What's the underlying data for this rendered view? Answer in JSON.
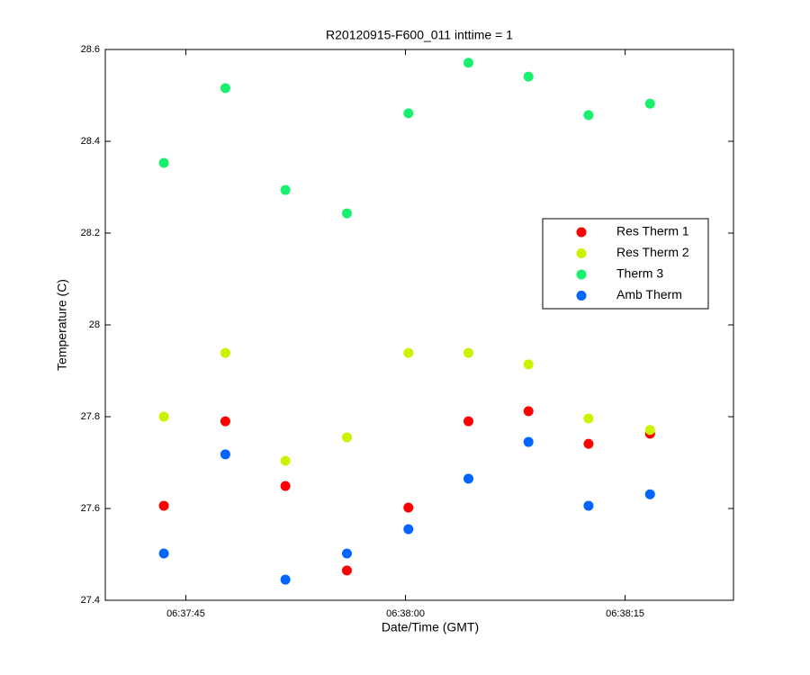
{
  "chart_data": {
    "type": "scatter",
    "title": "R20120915-F600_011 inttime = 1",
    "xlabel": "Date/Time (GMT)",
    "ylabel": "Temperature (C)",
    "x": [
      "06:37:43.5",
      "06:37:47.7",
      "06:37:51.8",
      "06:37:56.0",
      "06:38:00.2",
      "06:38:04.3",
      "06:38:08.4",
      "06:38:12.5",
      "06:38:16.7"
    ],
    "series": [
      {
        "name": "Res Therm 1",
        "color": "#ff0000",
        "values": [
          27.606,
          27.79,
          27.649,
          27.465,
          27.602,
          27.79,
          27.812,
          27.741,
          27.763
        ]
      },
      {
        "name": "Res Therm 2",
        "color": "#ccf200",
        "values": [
          27.8,
          27.939,
          27.704,
          27.755,
          27.939,
          27.939,
          27.914,
          27.796,
          27.771
        ]
      },
      {
        "name": "Therm 3",
        "color": "#19f06e",
        "values": [
          28.353,
          28.516,
          28.294,
          28.243,
          28.461,
          28.571,
          28.541,
          28.457,
          28.482
        ]
      },
      {
        "name": "Amb Therm",
        "color": "#0066ff",
        "values": [
          27.502,
          27.718,
          27.445,
          27.502,
          27.555,
          27.665,
          27.745,
          27.606,
          27.631
        ]
      }
    ],
    "xlim": [
      "06:37:39.5",
      "06:38:22.4"
    ],
    "xticks": [
      "06:37:45",
      "06:38:00",
      "06:38:15"
    ],
    "ylim": [
      27.4,
      28.6
    ],
    "yticks": [
      27.4,
      27.6,
      27.8,
      28,
      28.2,
      28.4,
      28.6
    ],
    "legend_position": "right",
    "grid": false
  }
}
